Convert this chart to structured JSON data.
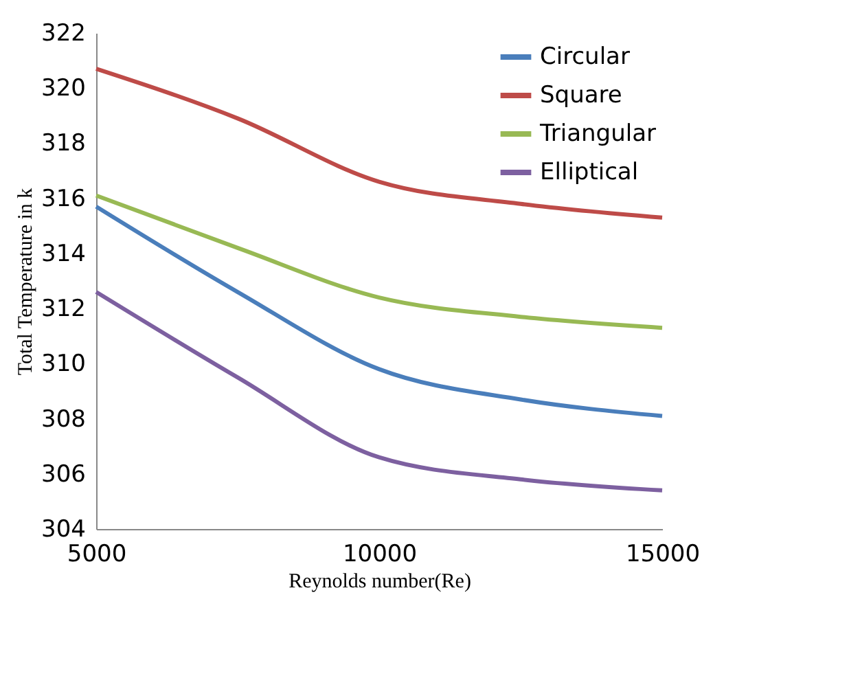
{
  "chart_data": {
    "type": "line",
    "xlabel": "Reynolds number(Re)",
    "ylabel": "Total Temperature in k",
    "x": [
      5000,
      7500,
      10000,
      12500,
      15000
    ],
    "series": [
      {
        "name": "Circular",
        "color": "#4a7ebb",
        "values": [
          315.7,
          312.6,
          309.8,
          308.7,
          308.1
        ]
      },
      {
        "name": "Square",
        "color": "#be4b48",
        "values": [
          320.7,
          318.9,
          316.6,
          315.8,
          315.3
        ]
      },
      {
        "name": "Triangular",
        "color": "#98b954",
        "values": [
          316.1,
          314.2,
          312.4,
          311.7,
          311.3
        ]
      },
      {
        "name": "Elliptical",
        "color": "#7d60a0",
        "values": [
          312.6,
          309.5,
          306.6,
          305.8,
          305.4
        ]
      }
    ],
    "xlim": [
      5000,
      15000
    ],
    "xticks": [
      5000,
      10000,
      15000
    ],
    "ylim": [
      304,
      322
    ],
    "yticks": [
      304,
      306,
      308,
      310,
      312,
      314,
      316,
      318,
      320,
      322
    ],
    "grid": false,
    "legend": "top right",
    "marker": "none",
    "line_style": "solid"
  }
}
